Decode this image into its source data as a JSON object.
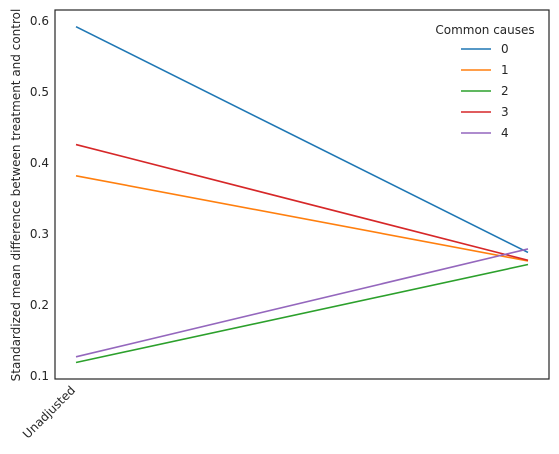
{
  "chart_data": {
    "type": "line",
    "x": [
      "Unadjusted",
      ""
    ],
    "xtick_labels": [
      "Unadjusted"
    ],
    "xlabel": "",
    "ylabel": "Standardized mean difference between treatment and control",
    "ylim": [
      0.1,
      0.6
    ],
    "yticks": [
      0.1,
      0.2,
      0.3,
      0.4,
      0.5,
      0.6
    ],
    "ytick_labels": [
      "0.1",
      "0.2",
      "0.3",
      "0.4",
      "0.5",
      "0.6"
    ],
    "grid": false,
    "legend": {
      "title": "Common causes",
      "placement": "top-right"
    },
    "series": [
      {
        "name": "0",
        "color": "#1f77b4",
        "values": [
          0.592,
          0.274
        ]
      },
      {
        "name": "1",
        "color": "#ff7f0e",
        "values": [
          0.382,
          0.262
        ]
      },
      {
        "name": "2",
        "color": "#2ca02c",
        "values": [
          0.119,
          0.257
        ]
      },
      {
        "name": "3",
        "color": "#d62728",
        "values": [
          0.426,
          0.263
        ]
      },
      {
        "name": "4",
        "color": "#9467bd",
        "values": [
          0.127,
          0.279
        ]
      }
    ]
  }
}
